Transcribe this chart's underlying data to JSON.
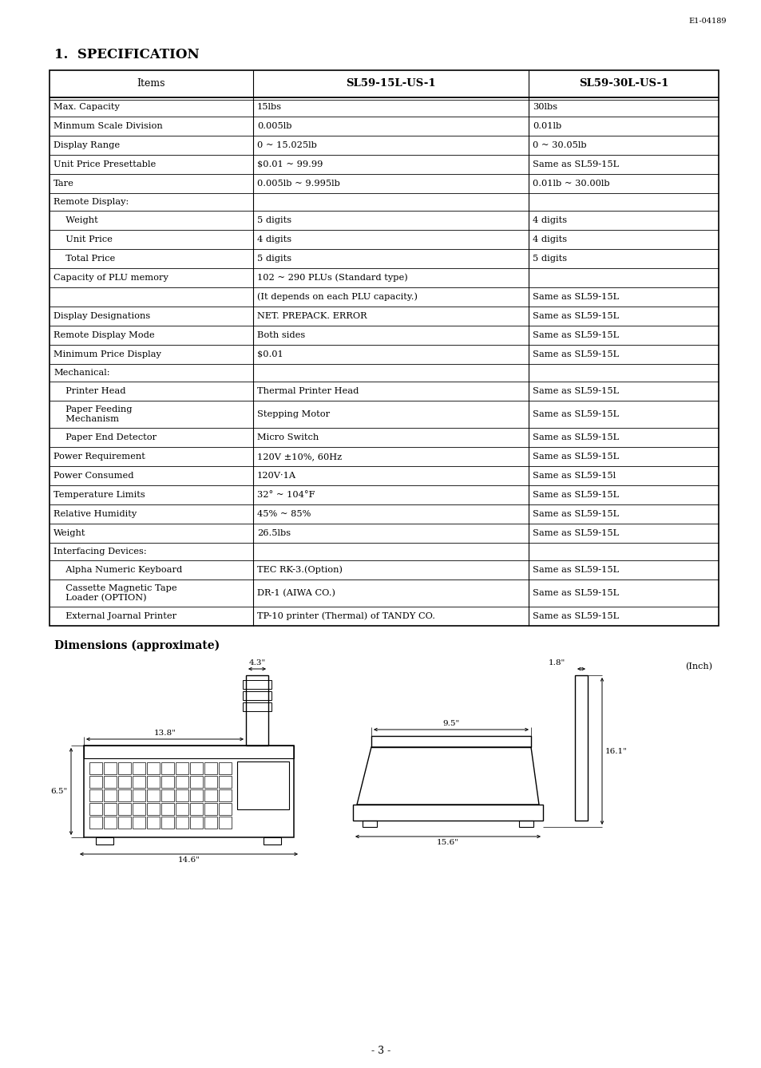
{
  "page_header": "E1-04189",
  "title": "1.  SPECIFICATION",
  "table_headers": [
    "Items",
    "SL59-15L-US-1",
    "SL59-30L-US-1"
  ],
  "table_rows": [
    [
      "Max. Capacity",
      "15lbs",
      "30lbs"
    ],
    [
      "Minmum Scale Division",
      "0.005lb",
      "0.01lb"
    ],
    [
      "Display Range",
      "0 ~ 15.025lb",
      "0 ~ 30.05lb"
    ],
    [
      "Unit Price Presettable",
      "$0.01 ~ 99.99",
      "Same as SL59-15L"
    ],
    [
      "Tare",
      "0.005lb ~ 9.995lb",
      "0.01lb ~ 30.00lb"
    ],
    [
      "Remote Display:",
      "",
      ""
    ],
    [
      "  Weight",
      "5 digits",
      "4 digits"
    ],
    [
      "  Unit Price",
      "4 digits",
      "4 digits"
    ],
    [
      "  Total Price",
      "5 digits",
      "5 digits"
    ],
    [
      "Capacity of PLU memory",
      "102 ~ 290 PLUs (Standard type)",
      ""
    ],
    [
      "",
      "(It depends on each PLU capacity.)",
      "Same as SL59-15L"
    ],
    [
      "Display Designations",
      "NET. PREPACK. ERROR",
      "Same as SL59-15L"
    ],
    [
      "Remote Display Mode",
      "Both sides",
      "Same as SL59-15L"
    ],
    [
      "Minimum Price Display",
      "$0.01",
      "Same as SL59-15L"
    ],
    [
      "Mechanical:",
      "",
      ""
    ],
    [
      "  Printer Head",
      "Thermal Printer Head",
      "Same as SL59-15L"
    ],
    [
      "  Paper Feeding\n  Mechanism",
      "Stepping Motor",
      "Same as SL59-15L"
    ],
    [
      "  Paper End Detector",
      "Micro Switch",
      "Same as SL59-15L"
    ],
    [
      "Power Requirement",
      "120V ±10%, 60Hz",
      "Same as SL59-15L"
    ],
    [
      "Power Consumed",
      "120V·1A",
      "Same as SL59-15l"
    ],
    [
      "Temperature Limits",
      "32° ~ 104°F",
      "Same as SL59-15L"
    ],
    [
      "Relative Humidity",
      "45% ~ 85%",
      "Same as SL59-15L"
    ],
    [
      "Weight",
      "26.5lbs",
      "Same as SL59-15L"
    ],
    [
      "Interfacing Devices:",
      "",
      ""
    ],
    [
      "  Alpha Numeric Keyboard",
      "TEC RK-3.(Option)",
      "Same as SL59-15L"
    ],
    [
      "  Cassette Magnetic Tape\n  Loader (OPTION)",
      "DR-1 (AIWA CO.)",
      "Same as SL59-15L"
    ],
    [
      "  External Joarnal Printer",
      "TP-10 printer (Thermal) of TANDY CO.",
      "Same as SL59-15L"
    ]
  ],
  "dimensions_label": "Dimensions (approximate)",
  "inch_label": "(Inch)",
  "page_number": "- 3 -",
  "bg": "#ffffff"
}
